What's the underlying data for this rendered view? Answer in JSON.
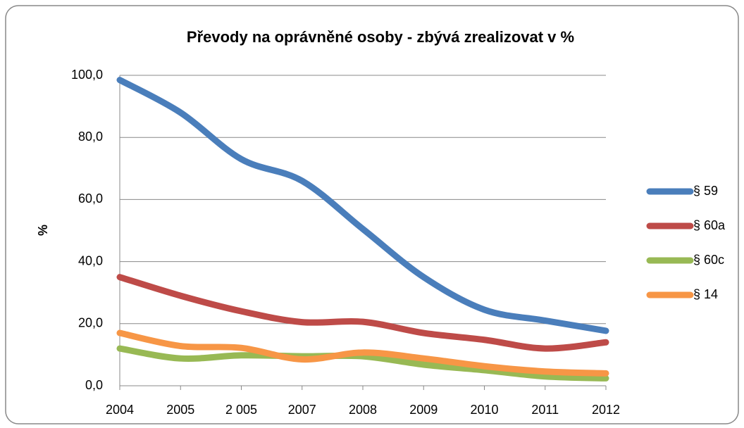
{
  "chart_data": {
    "type": "line",
    "title": "Převody na oprávněné osoby - zbývá zrealizovat v %",
    "y_label": "%",
    "categories": [
      "2004",
      "2005",
      "2 005",
      "2007",
      "2008",
      "2009",
      "2010",
      "2011",
      "2012"
    ],
    "series": [
      {
        "name": "§ 59",
        "color": "#4a7ebb",
        "values": [
          98.5,
          88,
          73,
          66,
          50.5,
          35,
          24.5,
          21,
          17.7
        ]
      },
      {
        "name": "§ 60a",
        "color": "#be4b48",
        "values": [
          35,
          29,
          24,
          20.5,
          20.6,
          17,
          14.8,
          12,
          14
        ]
      },
      {
        "name": "§ 60c",
        "color": "#98b954",
        "values": [
          12,
          8.8,
          9.8,
          9.5,
          9.5,
          6.8,
          5,
          3,
          2.4
        ]
      },
      {
        "name": "§ 14",
        "color": "#f79646",
        "values": [
          17,
          12.8,
          12.2,
          8.5,
          10.7,
          8.8,
          6.3,
          4.6,
          4
        ]
      }
    ],
    "ylim": [
      0,
      100
    ],
    "yticks": [
      {
        "value": 0,
        "label": "0,0"
      },
      {
        "value": 20,
        "label": "20,0"
      },
      {
        "value": 40,
        "label": "40,0"
      },
      {
        "value": 60,
        "label": "60,0"
      },
      {
        "value": 80,
        "label": "80,0"
      },
      {
        "value": 100,
        "label": "100,0"
      }
    ],
    "grid": true,
    "legend": "right",
    "smooth": true
  }
}
